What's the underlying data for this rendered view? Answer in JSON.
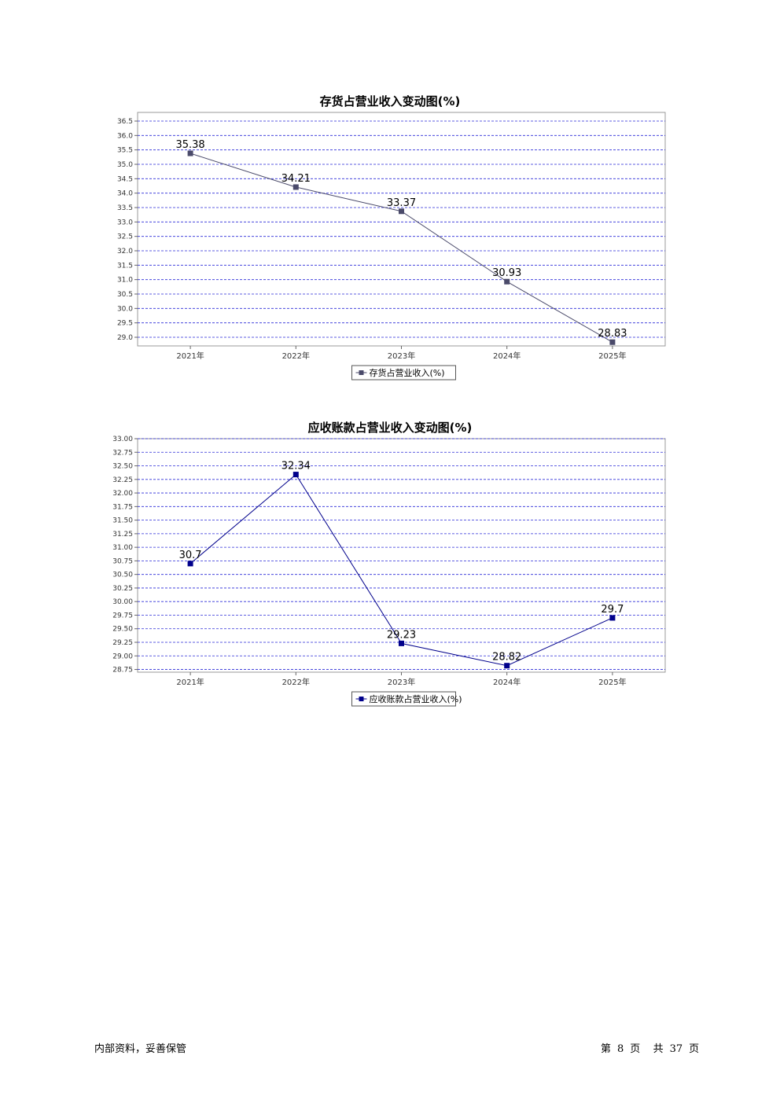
{
  "chart_data": [
    {
      "type": "line",
      "title": "存货占营业收入变动图(%)",
      "categories": [
        "2021年",
        "2022年",
        "2023年",
        "2024年",
        "2025年"
      ],
      "series": [
        {
          "name": "存货占营业收入(%)",
          "values": [
            35.38,
            34.21,
            33.37,
            30.93,
            28.83
          ],
          "color": "#4a4a6a"
        }
      ],
      "ylim": [
        28.7,
        36.8
      ],
      "yticks": [
        "36.5",
        "36.0",
        "35.5",
        "35.0",
        "34.5",
        "34.0",
        "33.5",
        "33.0",
        "32.5",
        "32.0",
        "31.5",
        "31.0",
        "30.5",
        "30.0",
        "29.5",
        "29.0"
      ],
      "grid": true,
      "grid_color": "#2a2ad8",
      "legend": "bottom-center"
    },
    {
      "type": "line",
      "title": "应收账款占营业收入变动图(%)",
      "categories": [
        "2021年",
        "2022年",
        "2023年",
        "2024年",
        "2025年"
      ],
      "series": [
        {
          "name": "应收账款占营业收入(%)",
          "values": [
            30.7,
            32.34,
            29.23,
            28.82,
            29.7
          ],
          "color": "#00008b"
        }
      ],
      "ylim": [
        28.7,
        33.0
      ],
      "yticks": [
        "33.00",
        "32.75",
        "32.50",
        "32.25",
        "32.00",
        "31.75",
        "31.50",
        "31.25",
        "31.00",
        "30.75",
        "30.50",
        "30.25",
        "30.00",
        "29.75",
        "29.50",
        "29.25",
        "29.00",
        "28.75"
      ],
      "grid": true,
      "grid_color": "#2a2ad8",
      "legend": "bottom-center"
    }
  ],
  "footer": {
    "left": "内部资料，妥善保管",
    "page_prefix": "第",
    "page_number": "8",
    "page_suffix": "页",
    "total_prefix": "共",
    "total_pages": "37",
    "total_suffix": "页"
  }
}
